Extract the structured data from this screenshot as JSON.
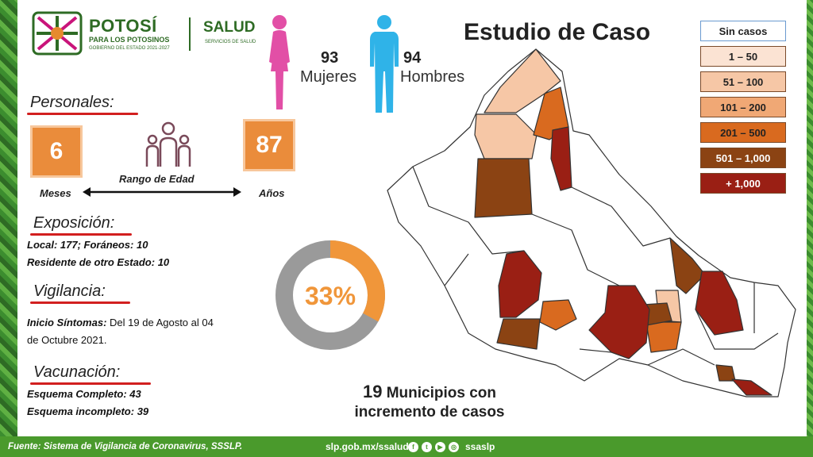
{
  "header": {
    "logo_name": "POTOSÍ",
    "logo_sub": "PARA LOS POTOSINOS",
    "logo_small": "GOBIERNO DEL ESTADO 2021-2027",
    "salud": "SALUD",
    "salud_sub": "SERVICIOS DE SALUD",
    "title": "Estudio de Caso"
  },
  "gender": {
    "female_count": "93",
    "female_label": "Mujeres",
    "male_count": "94",
    "male_label": "Hombres",
    "female_color": "#e24fa6",
    "male_color": "#2fb3e8"
  },
  "personales": {
    "heading": "Personales:",
    "min_value": "6",
    "min_label": "Meses",
    "max_value": "87",
    "max_label": "Años",
    "range_label": "Rango de Edad"
  },
  "exposicion": {
    "heading": "Exposición:",
    "line1": "Local:  177; Foráneos: 10",
    "line2": "Residente de otro Estado: 10"
  },
  "vigilancia": {
    "heading": "Vigilancia:",
    "label": "Inicio Síntomas:",
    "text": " Del 19 de Agosto al 04",
    "text2": "de Octubre 2021.",
    "percent": 33,
    "percent_label": "33%"
  },
  "vacunacion": {
    "heading": "Vacunación:",
    "line1": "Esquema Completo: 43",
    "line2": "Esquema incompleto: 39"
  },
  "legend": [
    {
      "label": "Sin casos",
      "color": "#ffffff"
    },
    {
      "label": "1 – 50",
      "color": "#fbe3d3"
    },
    {
      "label": "51 – 100",
      "color": "#f6c7a6"
    },
    {
      "label": "101 – 200",
      "color": "#f0a875"
    },
    {
      "label": "201 – 500",
      "color": "#d96a1f"
    },
    {
      "label": "501 – 1,000",
      "color": "#8b4313"
    },
    {
      "label": "+ 1,000",
      "color": "#9a1f14"
    }
  ],
  "municipios": {
    "count": "19",
    "line1": "Municipios con",
    "line2": "incremento de casos"
  },
  "footer": {
    "source": "Fuente: Sistema de Vigilancia de Coronavirus, SSSLP.",
    "url": "slp.gob.mx/ssalud",
    "handle": "ssaslp"
  }
}
